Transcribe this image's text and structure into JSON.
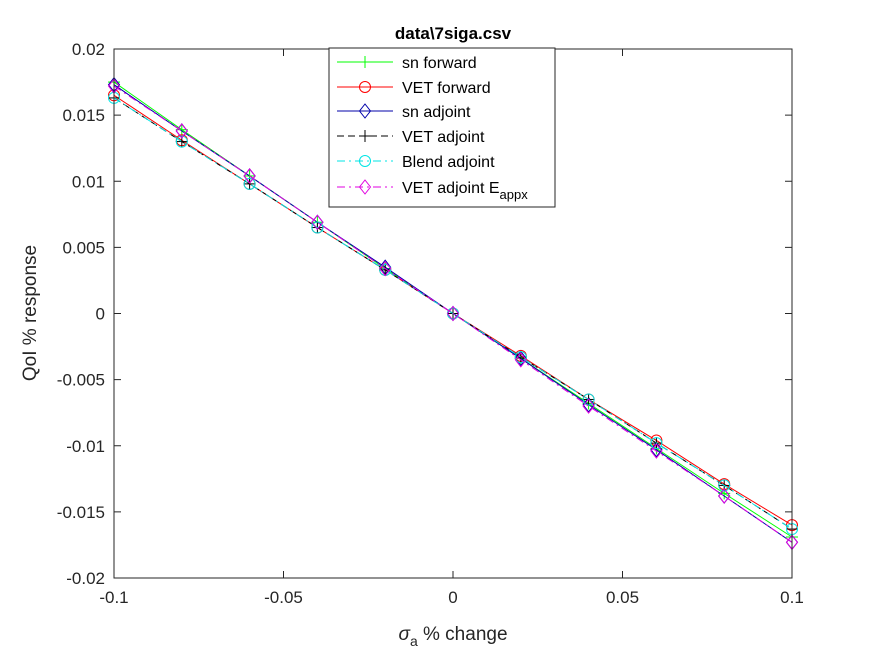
{
  "chart_data": {
    "type": "line",
    "title": "data\\7siga.csv",
    "xlabel_symbol": "σ",
    "xlabel_subscript": "a",
    "xlabel_rest": " % change",
    "ylabel": "QoI % response",
    "xlim": [
      -0.1,
      0.1
    ],
    "ylim": [
      -0.02,
      0.02
    ],
    "xticks": [
      -0.1,
      -0.05,
      0,
      0.05,
      0.1
    ],
    "xtick_labels": [
      "-0.1",
      "-0.05",
      "0",
      "0.05",
      "0.1"
    ],
    "yticks": [
      -0.02,
      -0.015,
      -0.01,
      -0.005,
      0,
      0.005,
      0.01,
      0.015,
      0.02
    ],
    "ytick_labels": [
      "-0.02",
      "-0.015",
      "-0.01",
      "-0.005",
      "0",
      "0.005",
      "0.01",
      "0.015",
      "0.02"
    ],
    "grid": false,
    "legend_position": "top-center",
    "x": [
      -0.1,
      -0.08,
      -0.06,
      -0.04,
      -0.02,
      0,
      0.02,
      0.04,
      0.06,
      0.08,
      0.1
    ],
    "series": [
      {
        "name": "sn forward",
        "color": "#00ff00",
        "dash": "solid",
        "marker": "plus",
        "values": [
          0.0175,
          0.0139,
          0.0104,
          0.0069,
          0.0034,
          0,
          -0.0034,
          -0.0068,
          -0.0102,
          -0.0136,
          -0.0169
        ]
      },
      {
        "name": "VET forward",
        "color": "#ff0000",
        "dash": "solid",
        "marker": "circle",
        "values": [
          0.0165,
          0.0131,
          0.0098,
          0.0065,
          0.0033,
          0,
          -0.0032,
          -0.0065,
          -0.0096,
          -0.0129,
          -0.016
        ]
      },
      {
        "name": "sn adjoint",
        "color": "#0000aa",
        "dash": "solid",
        "marker": "diamond",
        "values": [
          0.0173,
          0.0138,
          0.0104,
          0.0069,
          0.0035,
          0,
          -0.0034,
          -0.0069,
          -0.0103,
          -0.0138,
          -0.0173
        ]
      },
      {
        "name": "VET adjoint",
        "color": "#000000",
        "dash": "dashed",
        "marker": "plus",
        "values": [
          0.0163,
          0.013,
          0.0098,
          0.0065,
          0.0033,
          0,
          -0.0033,
          -0.0065,
          -0.0098,
          -0.013,
          -0.0163
        ]
      },
      {
        "name": "Blend adjoint",
        "color": "#00e5e5",
        "dash": "dashdot",
        "marker": "circle",
        "values": [
          0.0163,
          0.013,
          0.0098,
          0.0065,
          0.0033,
          0,
          -0.0033,
          -0.0065,
          -0.0098,
          -0.013,
          -0.0163
        ]
      },
      {
        "name": "VET adjoint E",
        "name_subscript": "appx",
        "color": "#e000e0",
        "dash": "dashdot",
        "marker": "diamond",
        "values": [
          0.0172,
          0.0138,
          0.0104,
          0.0069,
          0.0034,
          0,
          -0.0035,
          -0.007,
          -0.0104,
          -0.0138,
          -0.0173
        ]
      }
    ]
  }
}
